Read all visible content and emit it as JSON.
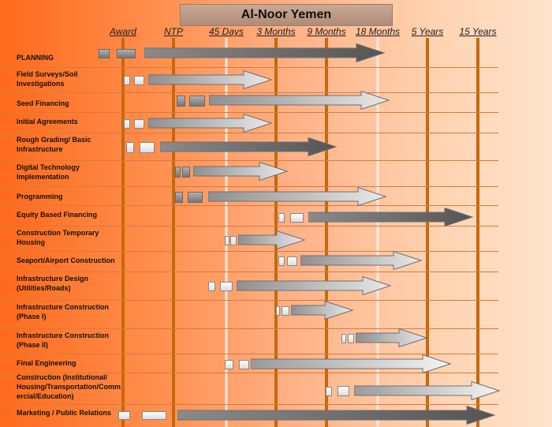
{
  "title": "Al-Noor Yemen",
  "milestones": [
    {
      "label": "Award"
    },
    {
      "label": "NTP"
    },
    {
      "label": "45 Days"
    },
    {
      "label": "3 Months"
    },
    {
      "label": "9 Months"
    },
    {
      "label": "18 Months"
    },
    {
      "label": "5 Years"
    },
    {
      "label": "15 Years"
    }
  ],
  "rows": [
    {
      "label": "PLANNING"
    },
    {
      "label": "Field Surveys/Soil Investigations"
    },
    {
      "label": "Seed Financing"
    },
    {
      "label": "Initial Agreements"
    },
    {
      "label": "Rough Grading/ Basic Infrastructure"
    },
    {
      "label": "Digital Technology Implementation"
    },
    {
      "label": "Programming"
    },
    {
      "label": "Equity Based Financing"
    },
    {
      "label": "Construction Temporary Housing"
    },
    {
      "label": "Seaport/Airport Construction"
    },
    {
      "label": "Infrastructure Design (Utilities/Roads)"
    },
    {
      "label": "Infrastructure Construction (Phase I)"
    },
    {
      "label": "Infrastructure Construction (Phase II)"
    },
    {
      "label": "Final Engineering"
    },
    {
      "label": "Construction (Institutional/ Housing/Transportation/Comm ercial/Education)"
    },
    {
      "label": "Marketing / Public Relations"
    }
  ]
}
